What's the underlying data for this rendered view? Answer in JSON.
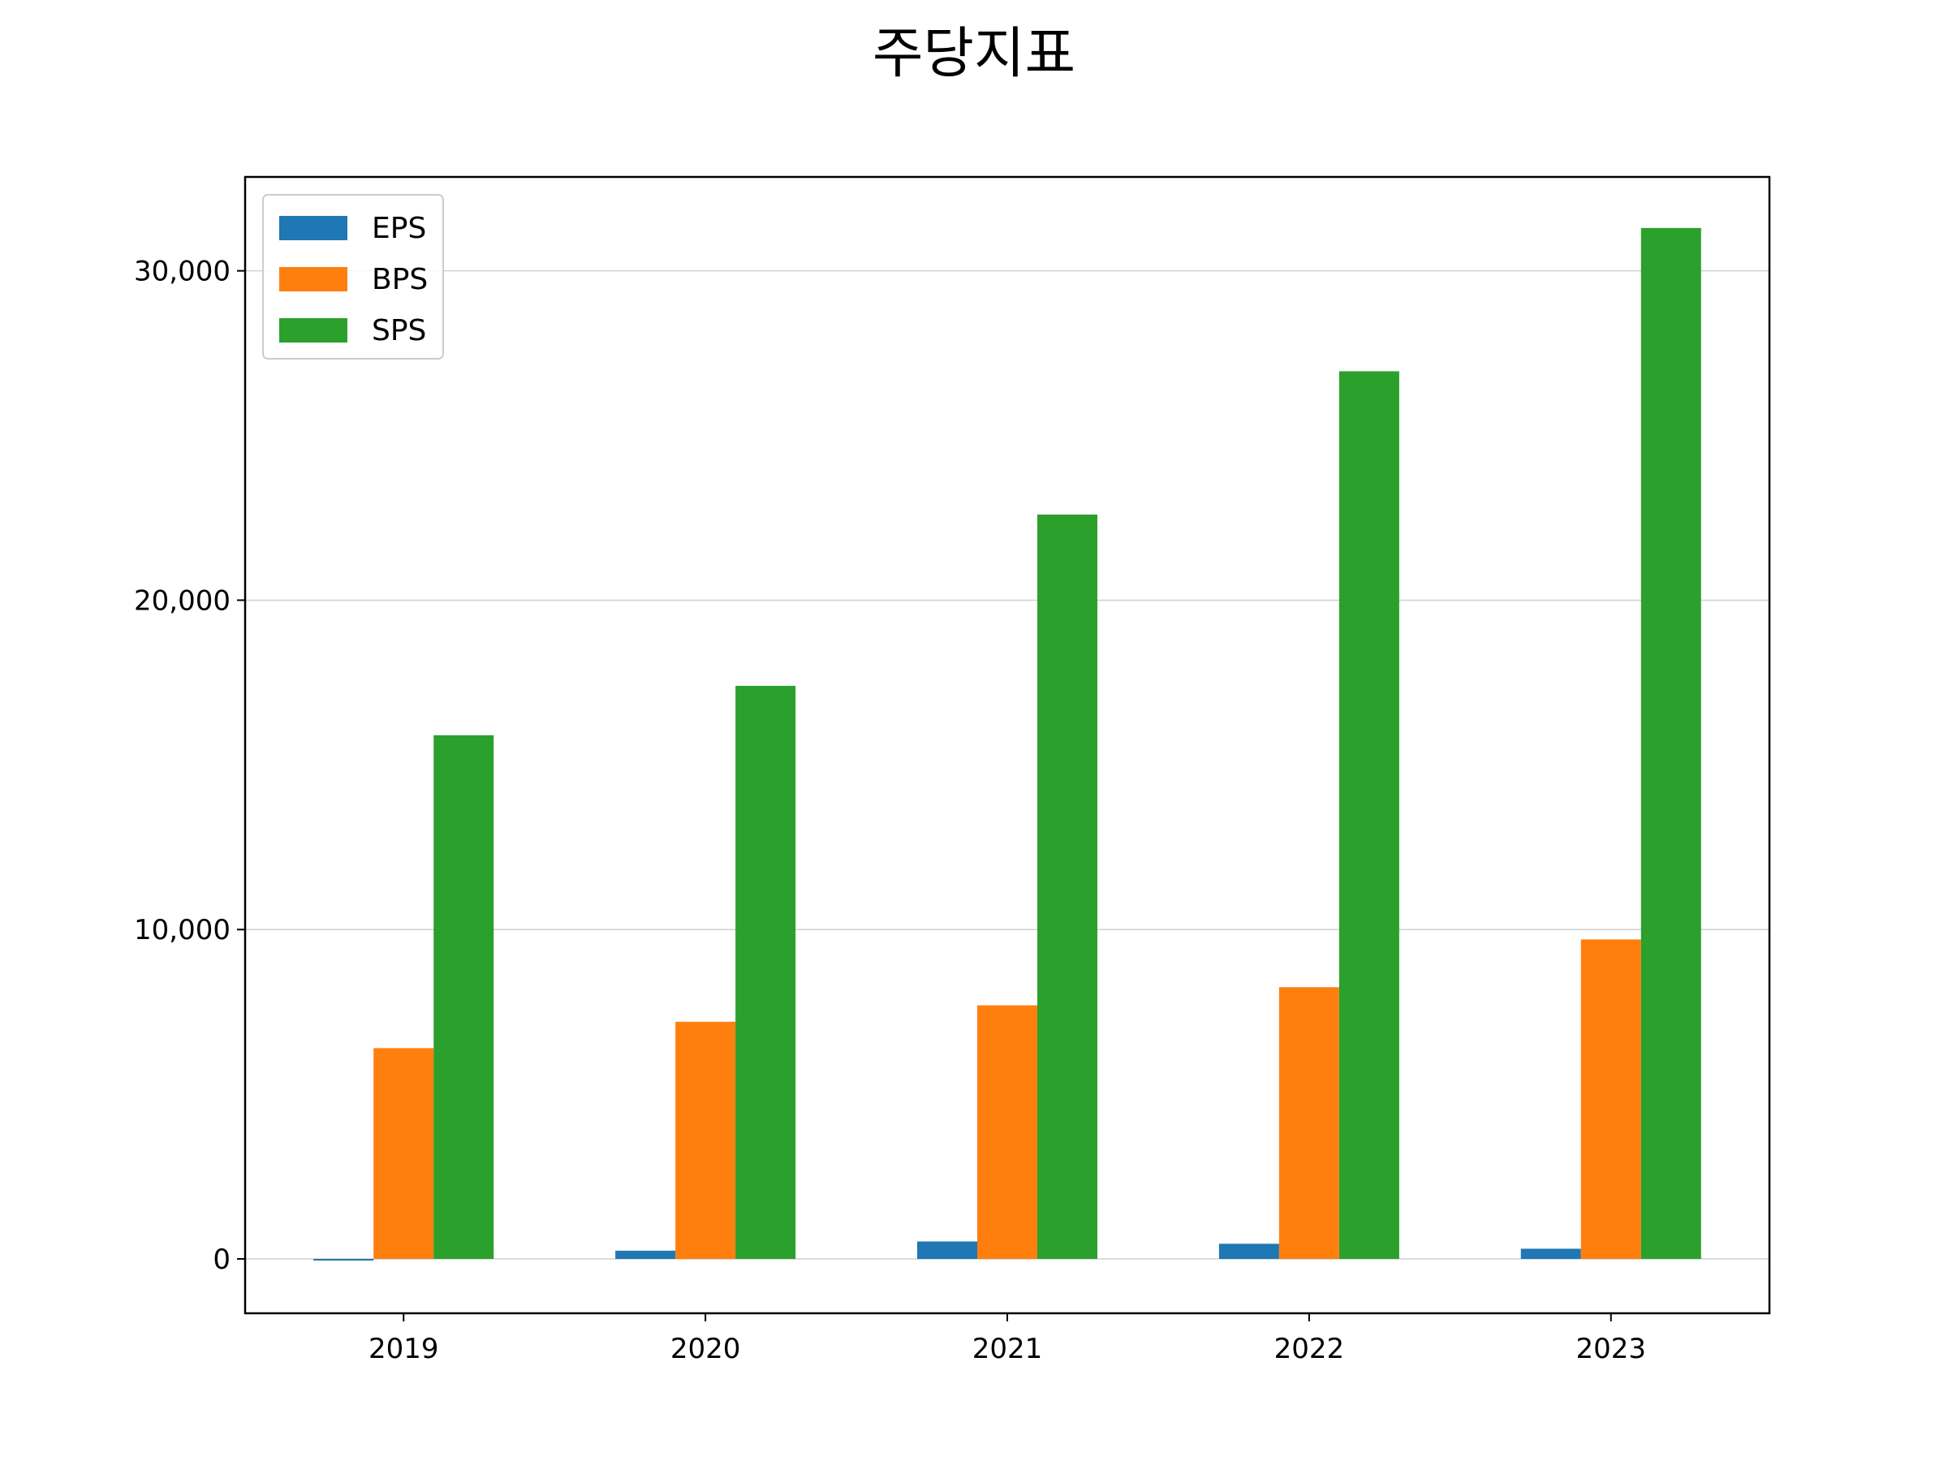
{
  "chart_data": {
    "type": "bar",
    "title": "주당지표",
    "xlabel": "",
    "ylabel": "",
    "categories": [
      "2019",
      "2020",
      "2021",
      "2022",
      "2023"
    ],
    "series": [
      {
        "name": "EPS",
        "color": "#1f77b4",
        "values": [
          -50,
          250,
          530,
          460,
          310
        ]
      },
      {
        "name": "BPS",
        "color": "#ff7f0e",
        "values": [
          6400,
          7200,
          7700,
          8250,
          9700
        ]
      },
      {
        "name": "SPS",
        "color": "#2ca02c",
        "values": [
          15900,
          17400,
          22600,
          26950,
          31300
        ]
      }
    ],
    "ylim": [
      -1650,
      32850
    ],
    "yticks": [
      0,
      10000,
      20000,
      30000
    ],
    "ytick_labels": [
      "0",
      "10,000",
      "20,000",
      "30,000"
    ],
    "grid": {
      "y": true,
      "x": false
    },
    "legend_position": "top-left"
  }
}
